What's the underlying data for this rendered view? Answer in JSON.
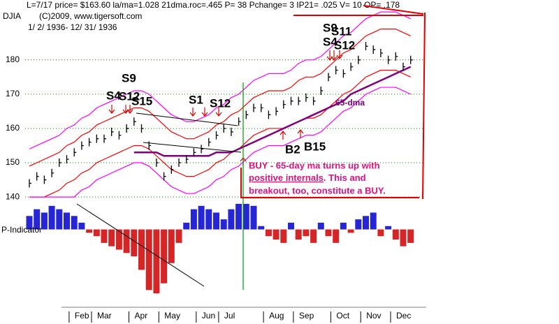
{
  "chart_data": [
    {
      "type": "line",
      "stats_line": "L=7/17  price= $163.60  la/ma=1.028 21dma.roc=.465 P=  38 Pchange=  3 IP21= .025 V= 10 OP= .178",
      "title": "DJIA",
      "subtitle": "(C)2009, www.tigersoft.com",
      "date_range": "1/ 2/ 1936- 12/ 31/ 1936",
      "ylim": [
        139,
        193
      ],
      "yticks": [
        140,
        150,
        160,
        170,
        180
      ],
      "grid": true,
      "grid_color": "#008000",
      "series": [
        {
          "color": "#ff00ff",
          "style": "line",
          "values": [
            154,
            155,
            156,
            157,
            158,
            160,
            161,
            163,
            164,
            166,
            167,
            168,
            169,
            170,
            171,
            171,
            170,
            168,
            166,
            164,
            163,
            162,
            162,
            163,
            164,
            166,
            167,
            169,
            170,
            172,
            174,
            175,
            176,
            176,
            176,
            177,
            179,
            180,
            180,
            181,
            183,
            185,
            187,
            188,
            190,
            192,
            193,
            194,
            194,
            194,
            193,
            192
          ]
        },
        {
          "color": "#ff0000",
          "style": "line",
          "values": [
            149,
            150,
            151,
            152,
            153,
            155,
            156,
            158,
            159,
            161,
            162,
            163,
            164,
            165,
            166,
            166,
            165,
            163,
            161,
            159,
            158,
            157,
            157,
            158,
            159,
            161,
            162,
            164,
            165,
            167,
            169,
            170,
            171,
            171,
            171,
            172,
            174,
            175,
            175,
            176,
            178,
            180,
            182,
            183,
            185,
            187,
            188,
            189,
            189,
            189,
            188,
            187
          ]
        },
        {
          "color": "#ff0000",
          "style": "line",
          "values": [
            140,
            140,
            140,
            141,
            142,
            144,
            145,
            147,
            148,
            150,
            151,
            152,
            153,
            154,
            155,
            155,
            154,
            152,
            150,
            148,
            147,
            146,
            146,
            147,
            148,
            150,
            151,
            153,
            154,
            156,
            158,
            159,
            160,
            160,
            160,
            161,
            162,
            163,
            163,
            164,
            166,
            168,
            170,
            171,
            173,
            175,
            176,
            177,
            177,
            177,
            176,
            175
          ]
        },
        {
          "color": "#ff00ff",
          "style": "line",
          "values": [
            140,
            140,
            140,
            140,
            140,
            140,
            140,
            142,
            143,
            145,
            146,
            147,
            148,
            149,
            150,
            150,
            149,
            147,
            145,
            143,
            142,
            141,
            141,
            142,
            143,
            145,
            146,
            148,
            149,
            151,
            153,
            154,
            155,
            155,
            155,
            156,
            157,
            158,
            158,
            159,
            161,
            163,
            165,
            166,
            168,
            170,
            171,
            172,
            172,
            172,
            171,
            170
          ]
        },
        {
          "name": "65-dma",
          "color": "#800080",
          "style": "line",
          "values": [
            null,
            null,
            null,
            null,
            null,
            null,
            null,
            null,
            null,
            null,
            null,
            null,
            null,
            null,
            153,
            153,
            153,
            153,
            152,
            152,
            152,
            152,
            152,
            152,
            152,
            153,
            153,
            153,
            154,
            155,
            156,
            157,
            158,
            159,
            160,
            161,
            162,
            163,
            164,
            165,
            166,
            167,
            168,
            170,
            171,
            172,
            173,
            174,
            175,
            176,
            177,
            178
          ]
        },
        {
          "color": "#000000",
          "style": "bars",
          "values": [
            144,
            146,
            145,
            147,
            150,
            151,
            153,
            155,
            156,
            157,
            157,
            159,
            158,
            160,
            162,
            160,
            155,
            150,
            146,
            148,
            150,
            151,
            153,
            154,
            156,
            158,
            160,
            159,
            162,
            164,
            166,
            166,
            164,
            165,
            167,
            168,
            168,
            169,
            168,
            171,
            175,
            177,
            176,
            178,
            180,
            184,
            183,
            182,
            180,
            181,
            178,
            180
          ]
        }
      ],
      "annotations": [
        {
          "text": "S9"
        },
        {
          "text": "S4"
        },
        {
          "text": "S12"
        },
        {
          "text": "S15"
        },
        {
          "text": "S1"
        },
        {
          "text": "S12"
        },
        {
          "text": "S9"
        },
        {
          "text": "S11"
        },
        {
          "text": "S4"
        },
        {
          "text": "S12"
        },
        {
          "text": "B2"
        },
        {
          "text": "B15"
        }
      ],
      "note": [
        "BUY - 65-day ma turns up with",
        "positive internals",
        ".  This and",
        "breakout, too, constitute a BUY."
      ]
    },
    {
      "type": "bar",
      "title": "P-Indicator",
      "ylim": [
        -100,
        40
      ],
      "pos_color": "#0000cc",
      "neg_color": "#cc0000",
      "categories": [
        null,
        null,
        null,
        null,
        null,
        null,
        null,
        "Feb",
        null,
        null,
        "Mar",
        null,
        null,
        null,
        null,
        "Apr",
        null,
        null,
        null,
        "May",
        null,
        null,
        null,
        null,
        "Jun",
        null,
        null,
        "Jul",
        null,
        null,
        null,
        null,
        null,
        "Aug",
        null,
        null,
        null,
        "Sep",
        null,
        null,
        null,
        null,
        "Oct",
        null,
        null,
        null,
        "Nov",
        null,
        null,
        null,
        "Dec",
        null
      ],
      "values": [
        20,
        30,
        25,
        35,
        30,
        25,
        20,
        10,
        -5,
        -10,
        -20,
        -25,
        -30,
        -35,
        -40,
        -60,
        -90,
        -95,
        -80,
        -50,
        -20,
        10,
        30,
        35,
        30,
        25,
        15,
        30,
        38,
        38,
        35,
        5,
        -10,
        -15,
        -20,
        10,
        -15,
        -10,
        -20,
        10,
        -10,
        -20,
        10,
        -5,
        15,
        20,
        25,
        -10,
        5,
        -15,
        -25,
        -20
      ]
    }
  ]
}
